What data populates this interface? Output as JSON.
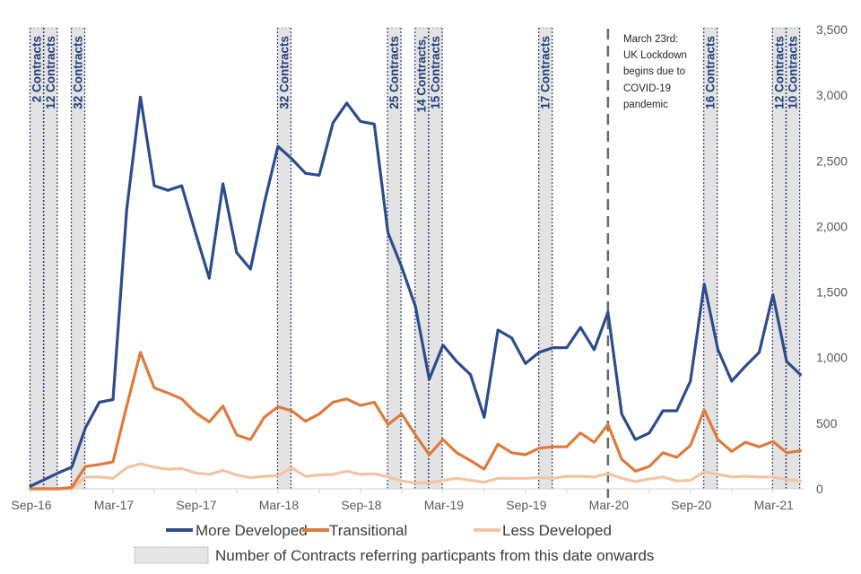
{
  "chart_data": {
    "type": "line",
    "title": "",
    "xlabel": "",
    "ylabel": "",
    "ylim": [
      0,
      3500
    ],
    "y_ticks": [
      0,
      500,
      1000,
      1500,
      2000,
      2500,
      3000,
      3500
    ],
    "y_tick_labels": [
      "0",
      "500",
      "1,000",
      "1,500",
      "2,000",
      "2,500",
      "3,000",
      "3,500"
    ],
    "y_axis_side": "right",
    "grid": false,
    "x": [
      "Sep-16",
      "Oct-16",
      "Nov-16",
      "Dec-16",
      "Jan-17",
      "Feb-17",
      "Mar-17",
      "Apr-17",
      "May-17",
      "Jun-17",
      "Jul-17",
      "Aug-17",
      "Sep-17",
      "Oct-17",
      "Nov-17",
      "Dec-17",
      "Jan-18",
      "Feb-18",
      "Mar-18",
      "Apr-18",
      "May-18",
      "Jun-18",
      "Jul-18",
      "Aug-18",
      "Sep-18",
      "Oct-18",
      "Nov-18",
      "Dec-18",
      "Jan-19",
      "Feb-19",
      "Mar-19",
      "Apr-19",
      "May-19",
      "Jun-19",
      "Jul-19",
      "Aug-19",
      "Sep-19",
      "Oct-19",
      "Nov-19",
      "Dec-19",
      "Jan-20",
      "Feb-20",
      "Mar-20",
      "Apr-20",
      "May-20",
      "Jun-20",
      "Jul-20",
      "Aug-20",
      "Sep-20",
      "Oct-20",
      "Nov-20",
      "Dec-20",
      "Jan-21",
      "Feb-21",
      "Mar-21",
      "Apr-21",
      "May-21"
    ],
    "x_tick_labels": [
      "Sep-16",
      "Mar-17",
      "Sep-17",
      "Mar-18",
      "Sep-18",
      "Mar-19",
      "Sep-19",
      "Mar-20",
      "Sep-20",
      "Mar-21"
    ],
    "series": [
      {
        "name": "More Developed",
        "color": "#2D4C8E",
        "values": [
          20,
          70,
          120,
          165,
          465,
          660,
          680,
          2130,
          2985,
          2310,
          2275,
          2310,
          1950,
          1605,
          2325,
          1800,
          1675,
          2175,
          2610,
          2515,
          2405,
          2390,
          2790,
          2940,
          2800,
          2780,
          1950,
          1690,
          1390,
          835,
          1095,
          970,
          870,
          545,
          1210,
          1150,
          955,
          1040,
          1075,
          1075,
          1230,
          1060,
          1345,
          570,
          375,
          425,
          595,
          595,
          820,
          1560,
          1060,
          820,
          935,
          1040,
          1480,
          970,
          870
        ]
      },
      {
        "name": "Transitional",
        "color": "#DD7B3C",
        "values": [
          0,
          0,
          0,
          10,
          170,
          185,
          205,
          630,
          1040,
          770,
          730,
          685,
          580,
          510,
          630,
          410,
          375,
          545,
          625,
          595,
          515,
          570,
          660,
          685,
          635,
          660,
          490,
          570,
          410,
          260,
          375,
          275,
          215,
          150,
          340,
          275,
          260,
          310,
          320,
          320,
          425,
          355,
          490,
          225,
          135,
          170,
          275,
          240,
          330,
          600,
          375,
          285,
          355,
          320,
          360,
          275,
          290
        ]
      },
      {
        "name": "Less Developed",
        "color": "#F4C4A2",
        "values": [
          0,
          0,
          0,
          0,
          90,
          90,
          80,
          160,
          190,
          165,
          150,
          155,
          120,
          110,
          140,
          105,
          85,
          95,
          100,
          160,
          95,
          105,
          110,
          135,
          110,
          115,
          90,
          60,
          45,
          45,
          65,
          80,
          65,
          50,
          80,
          80,
          80,
          85,
          80,
          95,
          95,
          90,
          115,
          80,
          55,
          75,
          90,
          60,
          65,
          130,
          110,
          90,
          95,
          90,
          90,
          70,
          60
        ]
      }
    ],
    "contract_bands": [
      {
        "label": "2 Contracts",
        "start": "Sep-16"
      },
      {
        "label": "12 Contracts",
        "start": "Oct-16"
      },
      {
        "label": "32 Contracts",
        "start": "Dec-16"
      },
      {
        "label": "32 Contracts",
        "start": "Mar-18"
      },
      {
        "label": "25 Contracts",
        "start": "Nov-18"
      },
      {
        "label": "14 Contracts,",
        "start": "Jan-19"
      },
      {
        "label": "15 Contracts",
        "start": "Feb-19"
      },
      {
        "label": "17 Contracts",
        "start": "Oct-19"
      },
      {
        "label": "16 Contracts",
        "start": "Oct-20"
      },
      {
        "label": "12 Contracts",
        "start": "Mar-21"
      },
      {
        "label": "10 Contracts",
        "start": "Apr-21"
      }
    ],
    "annotation": {
      "at": "Mar-20",
      "lines": [
        "March 23rd:",
        "UK Lockdown",
        "begins due to",
        "COVID-19",
        "pandemic"
      ]
    },
    "legend": {
      "placement": "bottom",
      "entries": [
        "More Developed",
        "Transitional",
        "Less Developed"
      ],
      "band_entry": "Number of Contracts referring particpants from this date onwards"
    }
  }
}
